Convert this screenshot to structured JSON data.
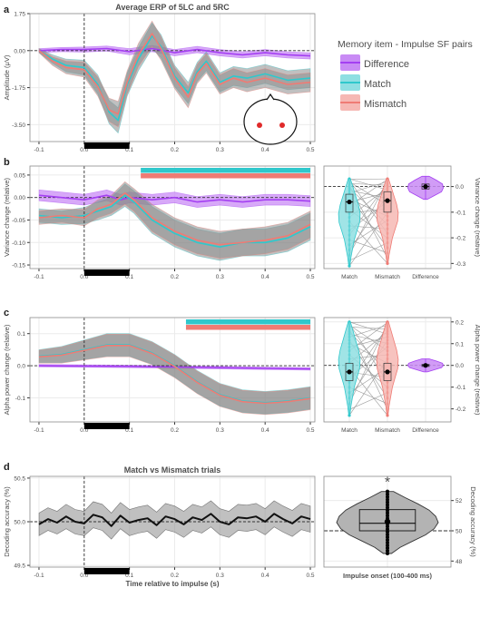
{
  "colors": {
    "difference": "#a43ff2",
    "match": "#2fc8cc",
    "mismatch": "#ef7b74",
    "error_band": "#8c8c8c",
    "panel_bg": "#ffffff",
    "grid": "#ebebeb",
    "panel_border": "#8c8c8c",
    "dashed": "#333333"
  },
  "panel_labels": [
    "a",
    "b",
    "c",
    "d"
  ],
  "legend": {
    "title": "Memory item - Impulse SF pairs",
    "entries": [
      "Difference",
      "Match",
      "Mismatch"
    ]
  },
  "chart_data": [
    {
      "id": "a",
      "type": "line",
      "title": "Average ERP of 5LC and 5RC",
      "xlabel": "",
      "ylabel": "Amplitude (μV)",
      "xlim": [
        -0.12,
        0.51
      ],
      "ylim": [
        -4.3,
        1.75
      ],
      "xticks": [
        -0.1,
        0,
        0.1,
        0.2,
        0.3,
        0.4,
        0.5
      ],
      "xtick_labels": [
        "-0.1",
        "0.0",
        "0.1",
        "0.2",
        "0.3",
        "0.4",
        "0.5"
      ],
      "yticks": [
        1.75,
        0,
        -1.75,
        -3.5
      ],
      "ytick_labels": [
        "1.75",
        "0.00",
        "-1.75",
        "-3.50"
      ],
      "impulse_bar": [
        0,
        0.1
      ],
      "series": [
        {
          "name": "Difference",
          "x": [
            -0.1,
            -0.05,
            0,
            0.05,
            0.1,
            0.15,
            0.2,
            0.25,
            0.3,
            0.35,
            0.4,
            0.45,
            0.5
          ],
          "y": [
            0,
            0.05,
            0.05,
            0.1,
            -0.05,
            0.1,
            -0.1,
            0.05,
            -0.1,
            -0.2,
            -0.1,
            -0.2,
            -0.25
          ],
          "err": [
            0.1,
            0.1,
            0.12,
            0.12,
            0.15,
            0.15,
            0.15,
            0.15,
            0.15,
            0.15,
            0.15,
            0.15,
            0.15
          ]
        },
        {
          "name": "Match",
          "x": [
            -0.1,
            -0.07,
            -0.04,
            0,
            0.03,
            0.055,
            0.075,
            0.095,
            0.12,
            0.15,
            0.17,
            0.2,
            0.23,
            0.25,
            0.27,
            0.3,
            0.33,
            0.36,
            0.4,
            0.45,
            0.5
          ],
          "y": [
            0,
            -0.4,
            -0.7,
            -0.8,
            -1.6,
            -2.9,
            -3.3,
            -1.6,
            -0.4,
            0.7,
            0.2,
            -1.2,
            -2.0,
            -1.0,
            -0.5,
            -1.5,
            -1.2,
            -1.3,
            -1.1,
            -1.4,
            -1.3
          ],
          "err": [
            0.1,
            0.2,
            0.3,
            0.35,
            0.45,
            0.55,
            0.6,
            0.55,
            0.55,
            0.6,
            0.55,
            0.5,
            0.5,
            0.45,
            0.45,
            0.45,
            0.45,
            0.45,
            0.45,
            0.45,
            0.45
          ]
        },
        {
          "name": "Mismatch",
          "x": [
            -0.1,
            -0.07,
            -0.04,
            0,
            0.03,
            0.055,
            0.075,
            0.095,
            0.12,
            0.15,
            0.17,
            0.2,
            0.23,
            0.25,
            0.27,
            0.3,
            0.33,
            0.36,
            0.4,
            0.45,
            0.5
          ],
          "y": [
            0,
            -0.5,
            -0.8,
            -0.9,
            -1.7,
            -2.8,
            -3.0,
            -1.5,
            -0.2,
            0.8,
            0.1,
            -1.3,
            -2.2,
            -1.1,
            -0.6,
            -1.6,
            -1.3,
            -1.5,
            -1.3,
            -1.6,
            -1.5
          ],
          "err": [
            0.1,
            0.2,
            0.3,
            0.35,
            0.45,
            0.55,
            0.6,
            0.55,
            0.55,
            0.6,
            0.55,
            0.5,
            0.5,
            0.45,
            0.45,
            0.45,
            0.45,
            0.45,
            0.45,
            0.45,
            0.45
          ]
        }
      ]
    },
    {
      "id": "b",
      "type": "line",
      "title": "",
      "xlabel": "",
      "ylabel": "Variance change (relative)",
      "xlim": [
        -0.12,
        0.51
      ],
      "ylim": [
        -0.158,
        0.07
      ],
      "xticks": [
        -0.1,
        0,
        0.1,
        0.2,
        0.3,
        0.4,
        0.5
      ],
      "xtick_labels": [
        "-0.1",
        "0.0",
        "0.1",
        "0.2",
        "0.3",
        "0.4",
        "0.5"
      ],
      "yticks": [
        0.05,
        0,
        -0.05,
        -0.1,
        -0.15
      ],
      "ytick_labels": [
        "0.05",
        "0.00",
        "-0.05",
        "-0.10",
        "-0.15"
      ],
      "impulse_bar": [
        0,
        0.1
      ],
      "significance": [
        {
          "name": "Match",
          "x": [
            0.125,
            0.5
          ]
        },
        {
          "name": "Mismatch",
          "x": [
            0.125,
            0.5
          ]
        }
      ],
      "series": [
        {
          "name": "Difference",
          "x": [
            -0.1,
            -0.05,
            0,
            0.05,
            0.08,
            0.1,
            0.15,
            0.2,
            0.25,
            0.3,
            0.35,
            0.4,
            0.45,
            0.5
          ],
          "y": [
            0.005,
            0.0,
            -0.005,
            0.005,
            -0.005,
            0.0,
            -0.005,
            0.0,
            -0.01,
            -0.005,
            -0.01,
            -0.005,
            -0.005,
            -0.008
          ],
          "err": [
            0.012,
            0.012,
            0.012,
            0.012,
            0.012,
            0.012,
            0.012,
            0.012,
            0.012,
            0.012,
            0.012,
            0.012,
            0.012,
            0.012
          ]
        },
        {
          "name": "Match",
          "x": [
            -0.1,
            -0.05,
            0,
            0.03,
            0.06,
            0.09,
            0.11,
            0.15,
            0.2,
            0.25,
            0.3,
            0.35,
            0.4,
            0.45,
            0.5
          ],
          "y": [
            -0.04,
            -0.045,
            -0.04,
            -0.03,
            -0.02,
            0.005,
            -0.01,
            -0.05,
            -0.08,
            -0.1,
            -0.11,
            -0.1,
            -0.1,
            -0.09,
            -0.065
          ],
          "err": [
            0.015,
            0.015,
            0.018,
            0.02,
            0.02,
            0.025,
            0.025,
            0.03,
            0.03,
            0.03,
            0.03,
            0.03,
            0.03,
            0.03,
            0.03
          ]
        },
        {
          "name": "Mismatch",
          "x": [
            -0.1,
            -0.05,
            0,
            0.03,
            0.06,
            0.09,
            0.11,
            0.15,
            0.2,
            0.25,
            0.3,
            0.35,
            0.4,
            0.45,
            0.5
          ],
          "y": [
            -0.045,
            -0.04,
            -0.045,
            -0.025,
            -0.015,
            0.01,
            -0.005,
            -0.045,
            -0.075,
            -0.095,
            -0.105,
            -0.1,
            -0.095,
            -0.085,
            -0.06
          ],
          "err": [
            0.015,
            0.015,
            0.018,
            0.02,
            0.02,
            0.025,
            0.025,
            0.03,
            0.03,
            0.03,
            0.03,
            0.03,
            0.03,
            0.03,
            0.03
          ]
        }
      ]
    },
    {
      "id": "b-violin",
      "type": "violin",
      "ylabel": "Variance change (relative)",
      "categories": [
        "Match",
        "Mismatch",
        "Difference"
      ],
      "ylim": [
        -0.32,
        0.08
      ],
      "yticks": [
        0,
        -0.1,
        -0.2,
        -0.3
      ],
      "ytick_labels": [
        "0.0",
        "-0.1",
        "-0.2",
        "-0.3"
      ],
      "medians": [
        -0.06,
        -0.055,
        0.0
      ],
      "quartiles": [
        [
          -0.1,
          -0.03
        ],
        [
          -0.1,
          -0.02
        ],
        [
          -0.01,
          0.01
        ]
      ],
      "ranges": [
        [
          -0.31,
          0.03
        ],
        [
          -0.3,
          0.03
        ],
        [
          -0.05,
          0.04
        ]
      ]
    },
    {
      "id": "c",
      "type": "line",
      "title": "",
      "xlabel": "",
      "ylabel": "Alpha power change (relative)",
      "xlim": [
        -0.12,
        0.51
      ],
      "ylim": [
        -0.175,
        0.15
      ],
      "xticks": [
        -0.1,
        0,
        0.1,
        0.2,
        0.3,
        0.4,
        0.5
      ],
      "xtick_labels": [
        "-0.1",
        "0.0",
        "0.1",
        "0.2",
        "0.3",
        "0.4",
        "0.5"
      ],
      "yticks": [
        0.1,
        0,
        -0.1
      ],
      "ytick_labels": [
        "0.1",
        "0.0",
        "-0.1"
      ],
      "impulse_bar": [
        0,
        0.1
      ],
      "significance": [
        {
          "name": "Match",
          "x": [
            0.225,
            0.5
          ]
        },
        {
          "name": "Mismatch",
          "x": [
            0.225,
            0.5
          ]
        }
      ],
      "series": [
        {
          "name": "Difference",
          "x": [
            -0.1,
            0,
            0.1,
            0.2,
            0.3,
            0.4,
            0.5
          ],
          "y": [
            0.0,
            -0.001,
            -0.002,
            -0.004,
            -0.006,
            -0.008,
            -0.01
          ],
          "err": [
            0.004,
            0.004,
            0.004,
            0.004,
            0.004,
            0.004,
            0.004
          ]
        },
        {
          "name": "Match",
          "x": [
            -0.1,
            -0.05,
            0,
            0.05,
            0.1,
            0.15,
            0.2,
            0.25,
            0.3,
            0.35,
            0.4,
            0.45,
            0.5
          ],
          "y": [
            0.03,
            0.035,
            0.05,
            0.065,
            0.065,
            0.04,
            0.0,
            -0.05,
            -0.09,
            -0.11,
            -0.115,
            -0.11,
            -0.1
          ],
          "err": [
            0.02,
            0.025,
            0.03,
            0.035,
            0.035,
            0.035,
            0.035,
            0.035,
            0.035,
            0.035,
            0.035,
            0.035,
            0.035
          ]
        },
        {
          "name": "Mismatch",
          "x": [
            -0.1,
            -0.05,
            0,
            0.05,
            0.1,
            0.15,
            0.2,
            0.25,
            0.3,
            0.35,
            0.4,
            0.45,
            0.5
          ],
          "y": [
            0.028,
            0.033,
            0.048,
            0.063,
            0.063,
            0.038,
            -0.002,
            -0.052,
            -0.092,
            -0.112,
            -0.117,
            -0.112,
            -0.102
          ],
          "err": [
            0.02,
            0.025,
            0.03,
            0.035,
            0.035,
            0.035,
            0.035,
            0.035,
            0.035,
            0.035,
            0.035,
            0.035,
            0.035
          ]
        }
      ]
    },
    {
      "id": "c-violin",
      "type": "violin",
      "ylabel": "Alpha power change (relative)",
      "categories": [
        "Match",
        "Mismatch",
        "Difference"
      ],
      "ylim": [
        -0.26,
        0.22
      ],
      "yticks": [
        0.2,
        0.1,
        0,
        -0.1,
        -0.2
      ],
      "ytick_labels": [
        "0.2",
        "0.1",
        "0.0",
        "-0.1",
        "-0.2"
      ],
      "medians": [
        -0.03,
        -0.03,
        0.0
      ],
      "quartiles": [
        [
          -0.07,
          0.01
        ],
        [
          -0.07,
          0.01
        ],
        [
          -0.005,
          0.005
        ]
      ],
      "ranges": [
        [
          -0.23,
          0.2
        ],
        [
          -0.23,
          0.2
        ],
        [
          -0.03,
          0.03
        ]
      ]
    },
    {
      "id": "d",
      "type": "line",
      "title": "Match vs Mismatch trials",
      "xlabel": "Time relative to impulse (s)",
      "ylabel": "Decoding accuracy (%)",
      "xlim": [
        -0.12,
        0.51
      ],
      "ylim": [
        49.48,
        50.52
      ],
      "xticks": [
        -0.1,
        0,
        0.1,
        0.2,
        0.3,
        0.4,
        0.5
      ],
      "xtick_labels": [
        "-0.1",
        "0.0",
        "0.1",
        "0.2",
        "0.3",
        "0.4",
        "0.5"
      ],
      "yticks": [
        50.5,
        50.0,
        49.5
      ],
      "ytick_labels": [
        "50.5",
        "50.0",
        "49.5"
      ],
      "impulse_bar": [
        0,
        0.1
      ],
      "chance_level": 50.0,
      "series": [
        {
          "name": "",
          "x": [
            -0.1,
            -0.08,
            -0.06,
            -0.04,
            -0.02,
            0,
            0.02,
            0.04,
            0.06,
            0.08,
            0.1,
            0.12,
            0.14,
            0.16,
            0.18,
            0.2,
            0.22,
            0.24,
            0.26,
            0.28,
            0.3,
            0.32,
            0.34,
            0.36,
            0.38,
            0.4,
            0.42,
            0.44,
            0.46,
            0.48,
            0.5
          ],
          "y": [
            49.97,
            50.03,
            49.99,
            50.06,
            50.0,
            49.98,
            50.08,
            50.05,
            49.95,
            50.07,
            49.99,
            50.02,
            50.04,
            49.96,
            50.06,
            50.03,
            49.97,
            50.05,
            50.02,
            50.09,
            50.0,
            49.97,
            50.05,
            50.04,
            50.06,
            50.0,
            50.09,
            50.03,
            49.98,
            50.06,
            50.03
          ],
          "err": [
            0.13,
            0.13,
            0.13,
            0.14,
            0.14,
            0.14,
            0.15,
            0.15,
            0.15,
            0.15,
            0.15,
            0.15,
            0.15,
            0.15,
            0.15,
            0.15,
            0.15,
            0.15,
            0.15,
            0.15,
            0.15,
            0.15,
            0.15,
            0.15,
            0.15,
            0.15,
            0.15,
            0.15,
            0.15,
            0.15,
            0.15
          ]
        }
      ]
    },
    {
      "id": "d-violin",
      "type": "violin",
      "ylabel": "Decoding accuracy (%)",
      "xlabel": "Impulse onset (100-400 ms)",
      "categories": [
        ""
      ],
      "ylim": [
        47.6,
        53.6
      ],
      "yticks": [
        52,
        50,
        48
      ],
      "ytick_labels": [
        "52",
        "50",
        "48"
      ],
      "chance_level": 50,
      "median": 50.5,
      "mean": 50.6,
      "quartiles": [
        50.0,
        51.4
      ],
      "range": [
        48.5,
        52.6
      ],
      "significance_marker": "*"
    }
  ]
}
